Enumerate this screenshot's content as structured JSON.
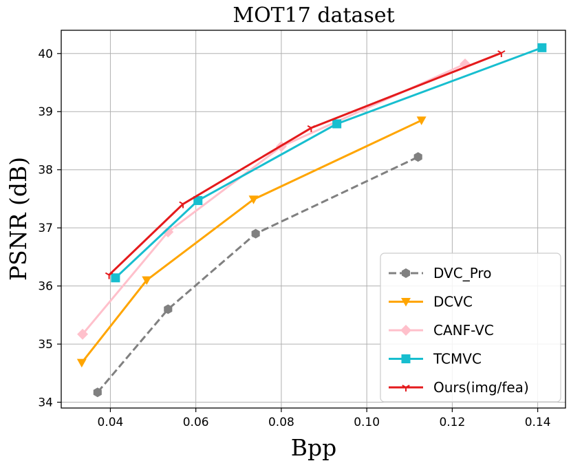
{
  "chart_data": {
    "type": "line",
    "title": "MOT17 dataset",
    "xlabel": "Bpp",
    "ylabel": "PSNR (dB)",
    "xlim": [
      0.0285,
      0.1465
    ],
    "ylim": [
      33.9,
      40.4
    ],
    "xticks": [
      0.04,
      0.06,
      0.08,
      0.1,
      0.12,
      0.14
    ],
    "xtick_labels": [
      "0.04",
      "0.06",
      "0.08",
      "0.10",
      "0.12",
      "0.14"
    ],
    "yticks": [
      34,
      35,
      36,
      37,
      38,
      39,
      40
    ],
    "ytick_labels": [
      "34",
      "35",
      "36",
      "37",
      "38",
      "39",
      "40"
    ],
    "grid": true,
    "legend_position": "bottom-right",
    "series": [
      {
        "name": "DVC_Pro",
        "color": "#808080",
        "line_style": "dashed",
        "marker": "hexagon",
        "x": [
          0.037,
          0.0535,
          0.074,
          0.112
        ],
        "y": [
          34.17,
          35.6,
          36.9,
          38.22
        ]
      },
      {
        "name": "DCVC",
        "color": "#ffa500",
        "line_style": "solid",
        "marker": "triangle-down",
        "x": [
          0.0333,
          0.0485,
          0.0735,
          0.1128
        ],
        "y": [
          34.68,
          36.1,
          37.49,
          38.85
        ]
      },
      {
        "name": "CANF-VC",
        "color": "#ffc0cb",
        "line_style": "solid",
        "marker": "diamond",
        "x": [
          0.0335,
          0.0535,
          0.08,
          0.123
        ],
        "y": [
          35.17,
          36.93,
          38.4,
          39.82
        ]
      },
      {
        "name": "TCMVC",
        "color": "#17becf",
        "line_style": "solid",
        "marker": "square",
        "x": [
          0.0412,
          0.0605,
          0.093,
          0.141
        ],
        "y": [
          36.14,
          37.47,
          38.79,
          40.1
        ]
      },
      {
        "name": "Ours(img/fea)",
        "color": "#e41a1c",
        "line_style": "solid",
        "marker": "tri-down",
        "x": [
          0.0397,
          0.057,
          0.087,
          0.1315
        ],
        "y": [
          36.19,
          37.41,
          38.72,
          40.01
        ]
      }
    ]
  }
}
